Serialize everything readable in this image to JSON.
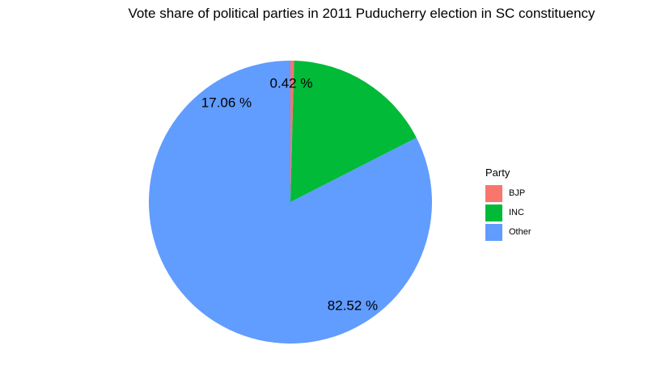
{
  "chart_data": {
    "type": "pie",
    "title": "Vote share of political parties in 2011 Puducherry election in SC constituency",
    "legend_title": "Party",
    "legend_position": "right",
    "slices": [
      {
        "label": "BJP",
        "value": 0.42,
        "display": "0.42 %",
        "color": "#F8766D"
      },
      {
        "label": "INC",
        "value": 17.06,
        "display": "17.06 %",
        "color": "#00BA38"
      },
      {
        "label": "Other",
        "value": 82.52,
        "display": "82.52 %",
        "color": "#619CFF"
      }
    ]
  }
}
